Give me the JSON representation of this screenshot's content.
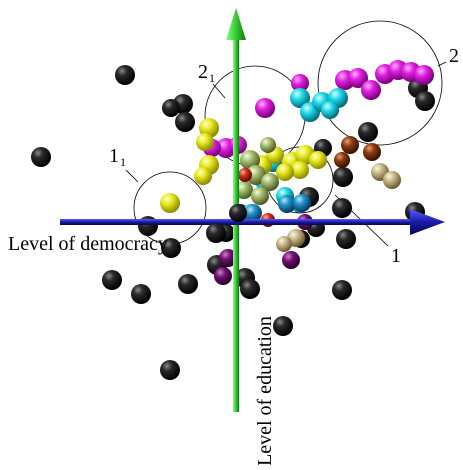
{
  "labels": {
    "x_axis": "Level of democracy",
    "y_axis": "Level of education",
    "cluster_1": "1",
    "cluster_1_sub": "1",
    "cluster_1_sub_index": "1",
    "cluster_2": "2",
    "cluster_2_sub": "2",
    "cluster_2_sub_index": "1"
  },
  "colors": {
    "x_axis": "#1a1aa8",
    "y_axis": "#33cc33",
    "black": "#1a1a1a",
    "magenta": "#e020e0",
    "cyan": "#20d8e8",
    "yellow": "#e8e820",
    "olive": "#b8c880",
    "brown": "#8a3a10",
    "tan": "#c8b88a",
    "blue": "#2090c8",
    "purple": "#701070",
    "red": "#d03020"
  }
}
